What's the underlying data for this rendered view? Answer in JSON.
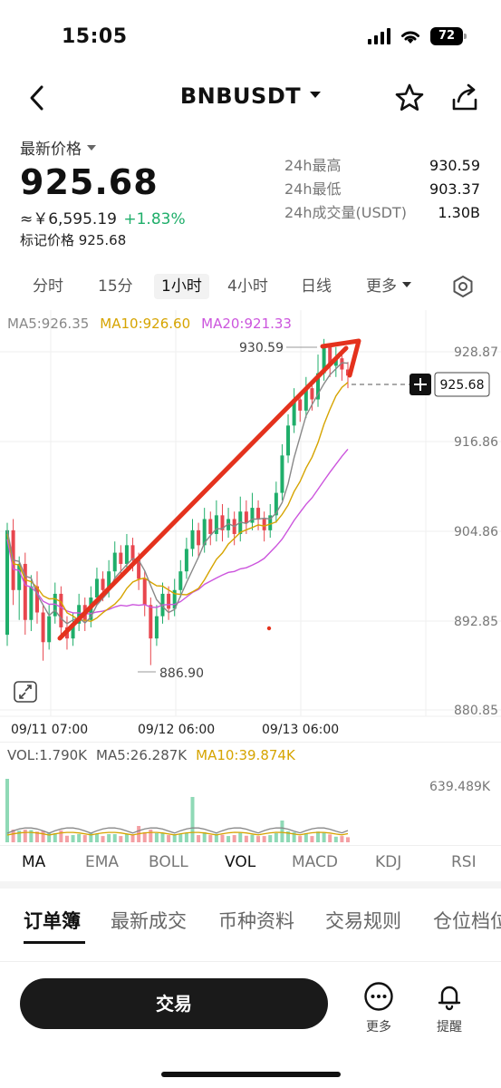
{
  "status": {
    "time": "15:05",
    "battery": "72"
  },
  "nav": {
    "title": "BNBUSDT"
  },
  "price": {
    "label": "最新价格",
    "last": "925.68",
    "cny": "≈￥6,595.19",
    "change": "+1.83%",
    "mark": "标记价格 925.68"
  },
  "stats": [
    {
      "label": "24h最高",
      "value": "930.59"
    },
    {
      "label": "24h最低",
      "value": "903.37"
    },
    {
      "label": "24h成交量(USDT)",
      "value": "1.30B"
    }
  ],
  "timeframes": [
    "分时",
    "15分",
    "1小时",
    "4小时",
    "日线"
  ],
  "timeframe_active": "1小时",
  "timeframe_more": "更多",
  "ma_legend": {
    "ma5": "MA5:926.35",
    "ma10": "MA10:926.60",
    "ma20": "MA20:921.33"
  },
  "colors": {
    "up": "#1fae6a",
    "down": "#e8464e",
    "ma5": "#888888",
    "ma10": "#d6a400",
    "ma20": "#cc55dd",
    "arrow": "#e4321d"
  },
  "chart_data": {
    "type": "candlestick",
    "y_ticks": [
      "928.87",
      "916.86",
      "904.86",
      "892.85",
      "880.85"
    ],
    "ylim": [
      880.85,
      932.0
    ],
    "x_ticks": [
      "09/11 07:00",
      "09/12 06:00",
      "09/13 06:00"
    ],
    "high_label": "930.59",
    "low_label": "886.90",
    "current_price_tag": "925.68",
    "candles": [
      [
        891.0,
        905.0,
        906.0,
        889.5
      ],
      [
        905.0,
        897.0,
        906.5,
        895.0
      ],
      [
        897.0,
        900.5,
        901.5,
        893.0
      ],
      [
        900.5,
        893.0,
        902.0,
        891.0
      ],
      [
        893.0,
        897.5,
        899.0,
        891.5
      ],
      [
        897.5,
        894.0,
        899.5,
        892.5
      ],
      [
        894.0,
        890.0,
        895.0,
        887.5
      ],
      [
        890.0,
        893.5,
        895.0,
        889.0
      ],
      [
        893.5,
        896.5,
        898.0,
        892.5
      ],
      [
        896.5,
        892.0,
        897.5,
        890.5
      ],
      [
        892.0,
        890.5,
        893.5,
        889.0
      ],
      [
        890.5,
        892.5,
        894.0,
        889.5
      ],
      [
        892.5,
        895.0,
        896.5,
        891.5
      ],
      [
        895.0,
        893.0,
        896.0,
        891.5
      ],
      [
        893.0,
        896.0,
        897.5,
        892.0
      ],
      [
        896.0,
        898.5,
        900.0,
        895.0
      ],
      [
        898.5,
        897.0,
        899.5,
        895.5
      ],
      [
        897.0,
        899.5,
        901.0,
        896.0
      ],
      [
        899.5,
        902.0,
        903.5,
        898.5
      ],
      [
        902.0,
        900.5,
        903.0,
        899.0
      ],
      [
        900.5,
        903.0,
        904.5,
        899.5
      ],
      [
        903.0,
        901.0,
        904.0,
        899.5
      ],
      [
        901.0,
        898.5,
        902.0,
        897.0
      ],
      [
        898.5,
        895.0,
        899.5,
        893.5
      ],
      [
        895.0,
        890.5,
        896.0,
        886.9
      ],
      [
        890.5,
        893.5,
        895.0,
        889.5
      ],
      [
        893.5,
        896.5,
        898.0,
        892.5
      ],
      [
        896.5,
        894.5,
        897.5,
        893.0
      ],
      [
        894.5,
        897.0,
        898.5,
        893.5
      ],
      [
        897.0,
        899.5,
        901.0,
        896.0
      ],
      [
        899.5,
        902.5,
        904.0,
        898.5
      ],
      [
        902.5,
        905.0,
        906.5,
        901.5
      ],
      [
        905.0,
        903.0,
        906.0,
        901.5
      ],
      [
        903.0,
        906.5,
        908.0,
        902.0
      ],
      [
        906.5,
        904.5,
        907.5,
        903.0
      ],
      [
        904.5,
        907.0,
        909.0,
        903.5
      ],
      [
        907.0,
        905.0,
        908.5,
        903.5
      ],
      [
        905.0,
        906.5,
        908.0,
        904.0
      ],
      [
        906.5,
        904.5,
        907.5,
        903.0
      ],
      [
        904.5,
        907.5,
        909.5,
        903.5
      ],
      [
        907.5,
        906.0,
        909.0,
        904.5
      ],
      [
        906.0,
        908.0,
        910.0,
        905.0
      ],
      [
        908.0,
        906.5,
        909.0,
        905.0
      ],
      [
        906.5,
        905.0,
        907.5,
        903.5
      ],
      [
        905.0,
        907.0,
        908.5,
        904.0
      ],
      [
        907.0,
        910.0,
        911.5,
        906.0
      ],
      [
        910.0,
        915.0,
        916.5,
        909.0
      ],
      [
        915.0,
        919.0,
        920.5,
        914.0
      ],
      [
        919.0,
        922.5,
        924.0,
        918.0
      ],
      [
        922.5,
        921.0,
        923.5,
        919.5
      ],
      [
        921.0,
        924.0,
        925.5,
        920.0
      ],
      [
        924.0,
        922.5,
        925.0,
        921.0
      ],
      [
        922.5,
        926.0,
        928.5,
        921.5
      ],
      [
        926.0,
        929.5,
        930.59,
        925.0
      ],
      [
        929.5,
        927.0,
        930.0,
        925.5
      ],
      [
        927.0,
        928.0,
        929.5,
        925.5
      ],
      [
        928.0,
        926.5,
        929.0,
        925.0
      ],
      [
        926.5,
        925.68,
        927.5,
        924.0
      ]
    ]
  },
  "vol_legend": {
    "vol": "VOL:1.790K",
    "ma5": "MA5:26.287K",
    "ma10": "MA10:39.874K",
    "max": "639.489K"
  },
  "indicators": [
    "MA",
    "EMA",
    "BOLL",
    "VOL",
    "MACD",
    "KDJ",
    "RSI"
  ],
  "tabs": [
    "订单簿",
    "最新成交",
    "币种资料",
    "交易规则",
    "仓位档位"
  ],
  "bottom": {
    "trade": "交易",
    "more": "更多",
    "alert": "提醒"
  }
}
